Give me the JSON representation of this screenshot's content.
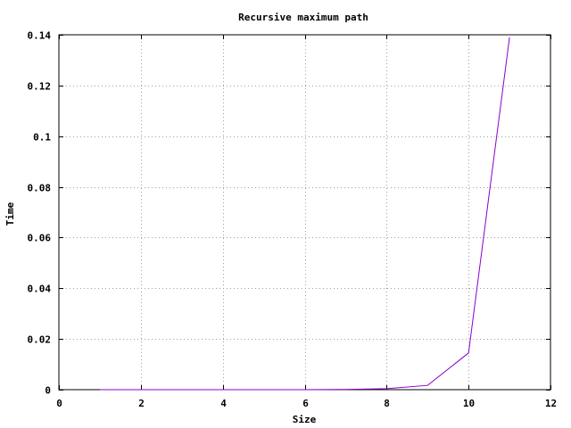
{
  "chart_data": {
    "type": "line",
    "title": "Recursive maximum path",
    "xlabel": "Size",
    "ylabel": "Time",
    "xlim": [
      0,
      12
    ],
    "ylim": [
      0,
      0.14
    ],
    "xticks": [
      "0",
      "2",
      "4",
      "6",
      "8",
      "10",
      "12"
    ],
    "yticks": [
      "0",
      "0.02",
      "0.04",
      "0.06",
      "0.08",
      "0.1",
      "0.12",
      "0.14"
    ],
    "grid": true,
    "legend": "none",
    "series": [
      {
        "color": "#8b00c8",
        "x": [
          1,
          2,
          3,
          4,
          5,
          6,
          7,
          8,
          9,
          10,
          11
        ],
        "y": [
          0,
          0,
          0,
          0,
          0,
          0,
          0.0001,
          0.0004,
          0.0017,
          0.0145,
          0.139
        ]
      }
    ]
  }
}
